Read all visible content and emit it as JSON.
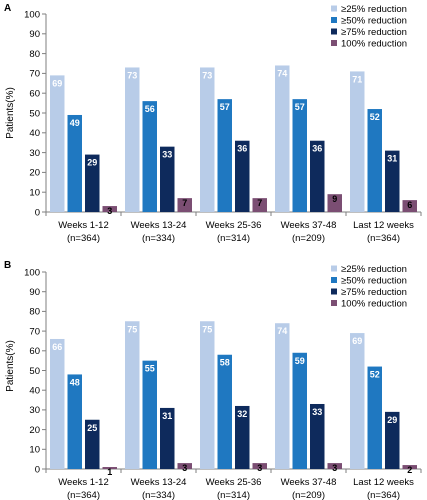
{
  "legend": {
    "items": [
      "≥25% reduction",
      "≥50% reduction",
      "≥75% reduction",
      "100% reduction"
    ]
  },
  "colors": {
    "series": [
      "#b8cce8",
      "#1f78c1",
      "#0e2a5c",
      "#7b4e73"
    ]
  },
  "chart_data": [
    {
      "type": "bar",
      "panel": "A",
      "ylabel": "Patients(%)",
      "ylim": [
        0,
        100
      ],
      "yticks": [
        0,
        10,
        20,
        30,
        40,
        50,
        60,
        70,
        80,
        90,
        100
      ],
      "grid": false,
      "legend_position": "top-right",
      "categories": [
        "Weeks 1-12",
        "Weeks 13-24",
        "Weeks 25-36",
        "Weeks 37-48",
        "Last 12 weeks"
      ],
      "subcategories": [
        "(n=364)",
        "(n=334)",
        "(n=314)",
        "(n=209)",
        "(n=364)"
      ],
      "series": [
        {
          "name": "≥25% reduction",
          "values": [
            69,
            73,
            73,
            74,
            71
          ]
        },
        {
          "name": "≥50% reduction",
          "values": [
            49,
            56,
            57,
            57,
            52
          ]
        },
        {
          "name": "≥75% reduction",
          "values": [
            29,
            33,
            36,
            36,
            31
          ]
        },
        {
          "name": "100% reduction",
          "values": [
            3,
            7,
            7,
            9,
            6
          ]
        }
      ]
    },
    {
      "type": "bar",
      "panel": "B",
      "ylabel": "Patients(%)",
      "ylim": [
        0,
        100
      ],
      "yticks": [
        0,
        10,
        20,
        30,
        40,
        50,
        60,
        70,
        80,
        90,
        100
      ],
      "grid": false,
      "legend_position": "top-right",
      "categories": [
        "Weeks 1-12",
        "Weeks 13-24",
        "Weeks 25-36",
        "Weeks 37-48",
        "Last 12 weeks"
      ],
      "subcategories": [
        "(n=364)",
        "(n=334)",
        "(n=314)",
        "(n=209)",
        "(n=364)"
      ],
      "series": [
        {
          "name": "≥25% reduction",
          "values": [
            66,
            75,
            75,
            74,
            69
          ]
        },
        {
          "name": "≥50% reduction",
          "values": [
            48,
            55,
            58,
            59,
            52
          ]
        },
        {
          "name": "≥75% reduction",
          "values": [
            25,
            31,
            32,
            33,
            29
          ]
        },
        {
          "name": "100% reduction",
          "values": [
            1,
            3,
            3,
            3,
            2
          ]
        }
      ]
    }
  ]
}
